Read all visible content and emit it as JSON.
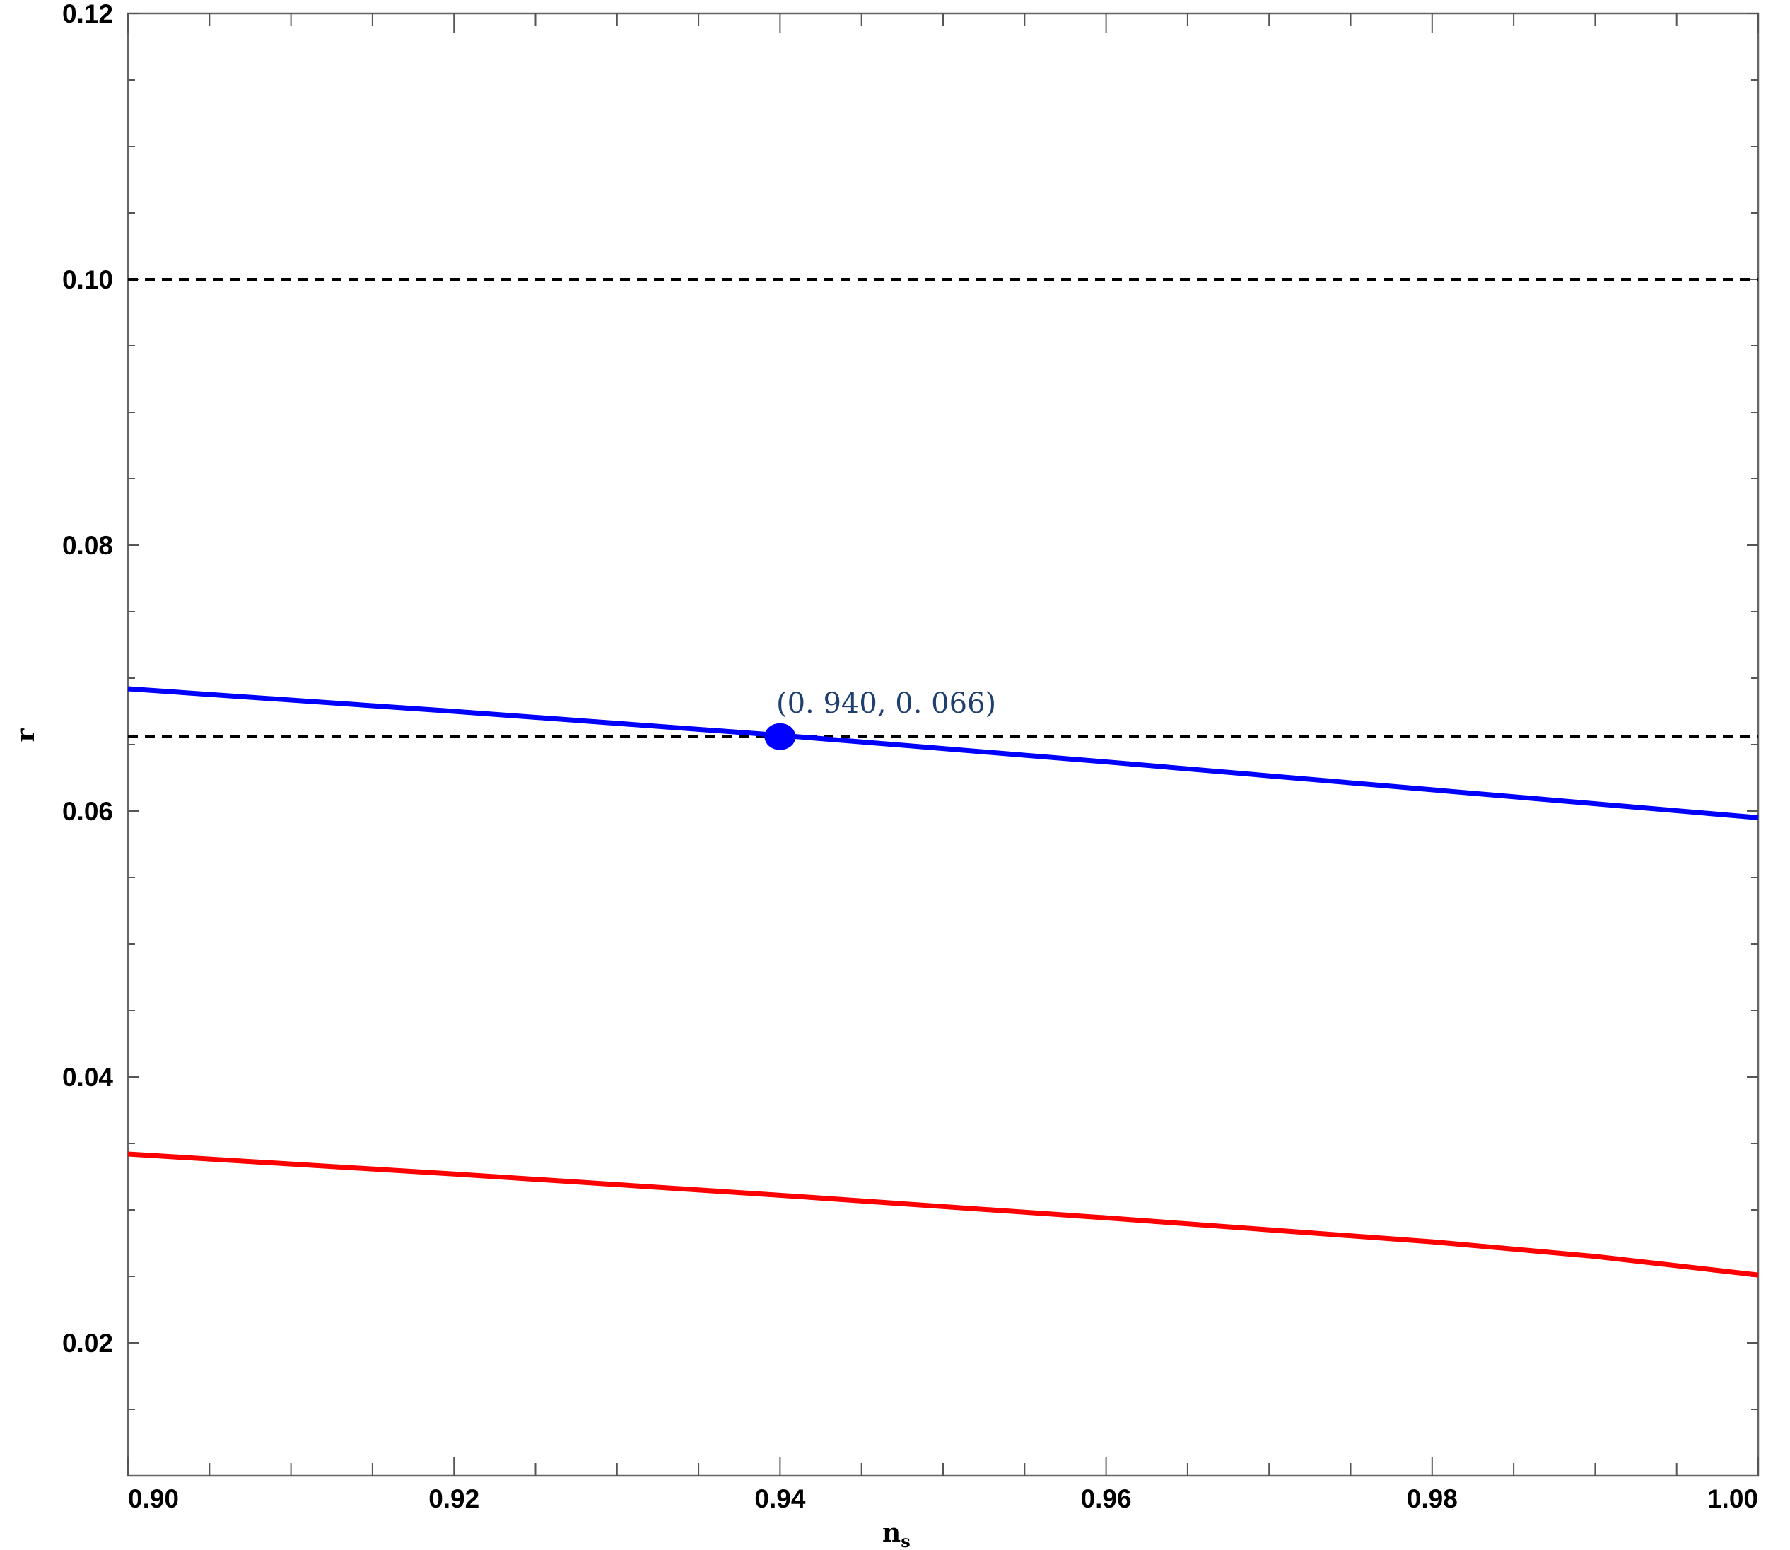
{
  "chart_data": {
    "type": "line",
    "xlabel": "n",
    "xlabel_sub": "s",
    "ylabel": "r",
    "xlim": [
      0.9,
      1.0
    ],
    "ylim": [
      0.01,
      0.12
    ],
    "x_ticks": [
      "0.90",
      "0.92",
      "0.94",
      "0.96",
      "0.98",
      "1.00"
    ],
    "y_ticks": [
      "0.02",
      "0.04",
      "0.06",
      "0.08",
      "0.10",
      "0.12"
    ],
    "grid": false,
    "series": [
      {
        "color": "#0000ff",
        "x": [
          0.9,
          0.92,
          0.94,
          0.96,
          0.98,
          1.0
        ],
        "y": [
          0.0692,
          0.0675,
          0.0657,
          0.0637,
          0.0616,
          0.0595
        ]
      },
      {
        "color": "#ff0000",
        "x": [
          0.9,
          0.92,
          0.94,
          0.96,
          0.98,
          0.99,
          1.0
        ],
        "y": [
          0.0342,
          0.0327,
          0.0311,
          0.0294,
          0.0276,
          0.0265,
          0.0251
        ]
      }
    ],
    "hlines": [
      {
        "y": 0.1,
        "style": "dashed",
        "color": "#000000"
      },
      {
        "y": 0.0656,
        "style": "dashed",
        "color": "#000000"
      }
    ],
    "point": {
      "x": 0.94,
      "y": 0.0656,
      "color": "#0000ff"
    },
    "annotation": "(0. 940,   0. 066)"
  }
}
